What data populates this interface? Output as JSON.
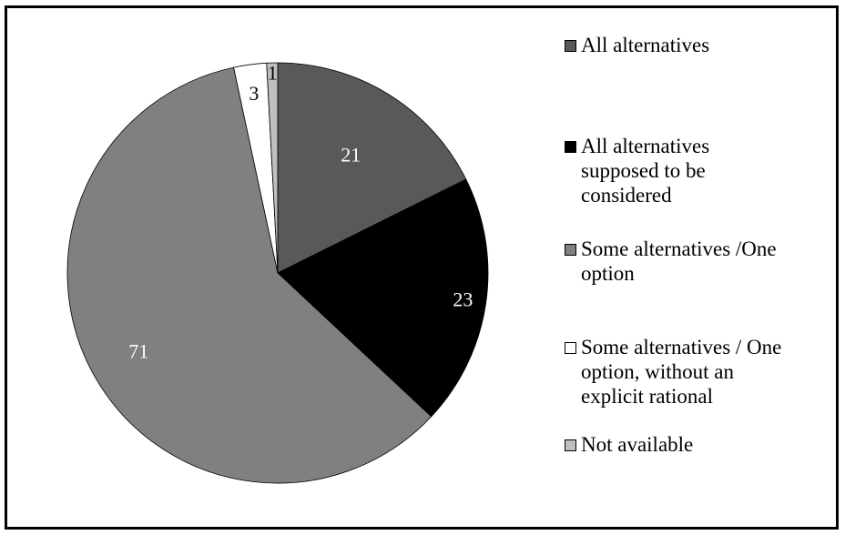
{
  "chart_data": {
    "type": "pie",
    "title": "",
    "categories": [
      "All alternatives",
      "All alternatives\nsupposed to be\nconsidered",
      "Some alternatives /One\noption",
      "Some alternatives / One\noption, without an\nexplicit rational",
      "Not available"
    ],
    "values": [
      21,
      23,
      71,
      3,
      1
    ],
    "labels": [
      "21",
      "23",
      "71",
      "3",
      "1"
    ],
    "colors": [
      "#595959",
      "#000000",
      "#808080",
      "#ffffff",
      "#bfbfbf"
    ],
    "label_colors": [
      "#ffffff",
      "#ffffff",
      "#ffffff",
      "#000000",
      "#000000"
    ],
    "start": "top",
    "direction": "clockwise",
    "legend_position": "right"
  }
}
